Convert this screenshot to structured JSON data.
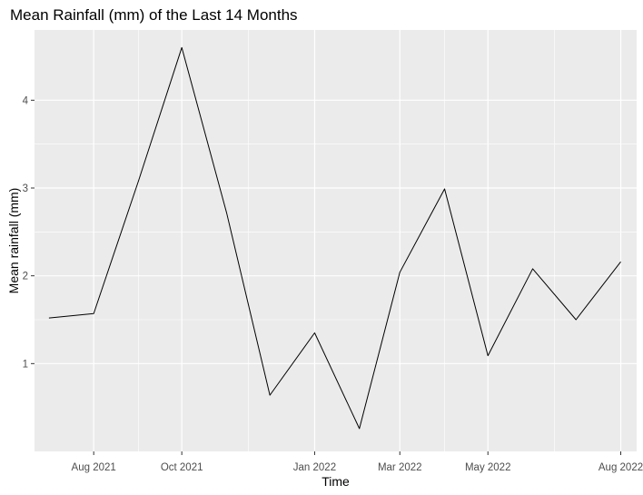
{
  "chart_data": {
    "type": "line",
    "title": "Mean Rainfall (mm) of the Last 14 Months",
    "xlabel": "Time",
    "ylabel": "Mean rainfall (mm)",
    "x_scale": "date",
    "xlim": [
      "2021-06-21",
      "2022-08-12"
    ],
    "ylim": [
      0.0,
      4.8
    ],
    "grid": true,
    "legend": "none",
    "colors": {
      "panel_background": "#ebebeb",
      "grid_major": "#ffffff",
      "line": "#000000"
    },
    "x_ticks": [
      {
        "date": "2021-08-01",
        "label": "Aug 2021"
      },
      {
        "date": "2021-10-01",
        "label": "Oct 2021"
      },
      {
        "date": "2022-01-01",
        "label": "Jan 2022"
      },
      {
        "date": "2022-03-01",
        "label": "Mar 2022"
      },
      {
        "date": "2022-05-01",
        "label": "May 2022"
      },
      {
        "date": "2022-08-01",
        "label": "Aug 2022"
      }
    ],
    "x_minor_ticks": [
      "2021-09-01",
      "2021-11-16",
      "2022-04-01",
      "2022-06-16"
    ],
    "y_ticks": [
      {
        "value": 1,
        "label": "1"
      },
      {
        "value": 2,
        "label": "2"
      },
      {
        "value": 3,
        "label": "3"
      },
      {
        "value": 4,
        "label": "4"
      }
    ],
    "y_minor_ticks": [
      1.5,
      2.5,
      3.5
    ],
    "series": [
      {
        "color": "#000000",
        "points": [
          {
            "x": "2021-07-01",
            "y": 1.52
          },
          {
            "x": "2021-08-01",
            "y": 1.57
          },
          {
            "x": "2021-09-01",
            "y": 3.08
          },
          {
            "x": "2021-10-01",
            "y": 4.6
          },
          {
            "x": "2021-11-01",
            "y": 2.72
          },
          {
            "x": "2021-12-01",
            "y": 0.64
          },
          {
            "x": "2022-01-01",
            "y": 1.35
          },
          {
            "x": "2022-02-01",
            "y": 0.26
          },
          {
            "x": "2022-03-01",
            "y": 2.04
          },
          {
            "x": "2022-04-01",
            "y": 2.99
          },
          {
            "x": "2022-05-01",
            "y": 1.09
          },
          {
            "x": "2022-06-01",
            "y": 2.08
          },
          {
            "x": "2022-07-01",
            "y": 1.5
          },
          {
            "x": "2022-08-01",
            "y": 2.16
          }
        ]
      }
    ]
  }
}
